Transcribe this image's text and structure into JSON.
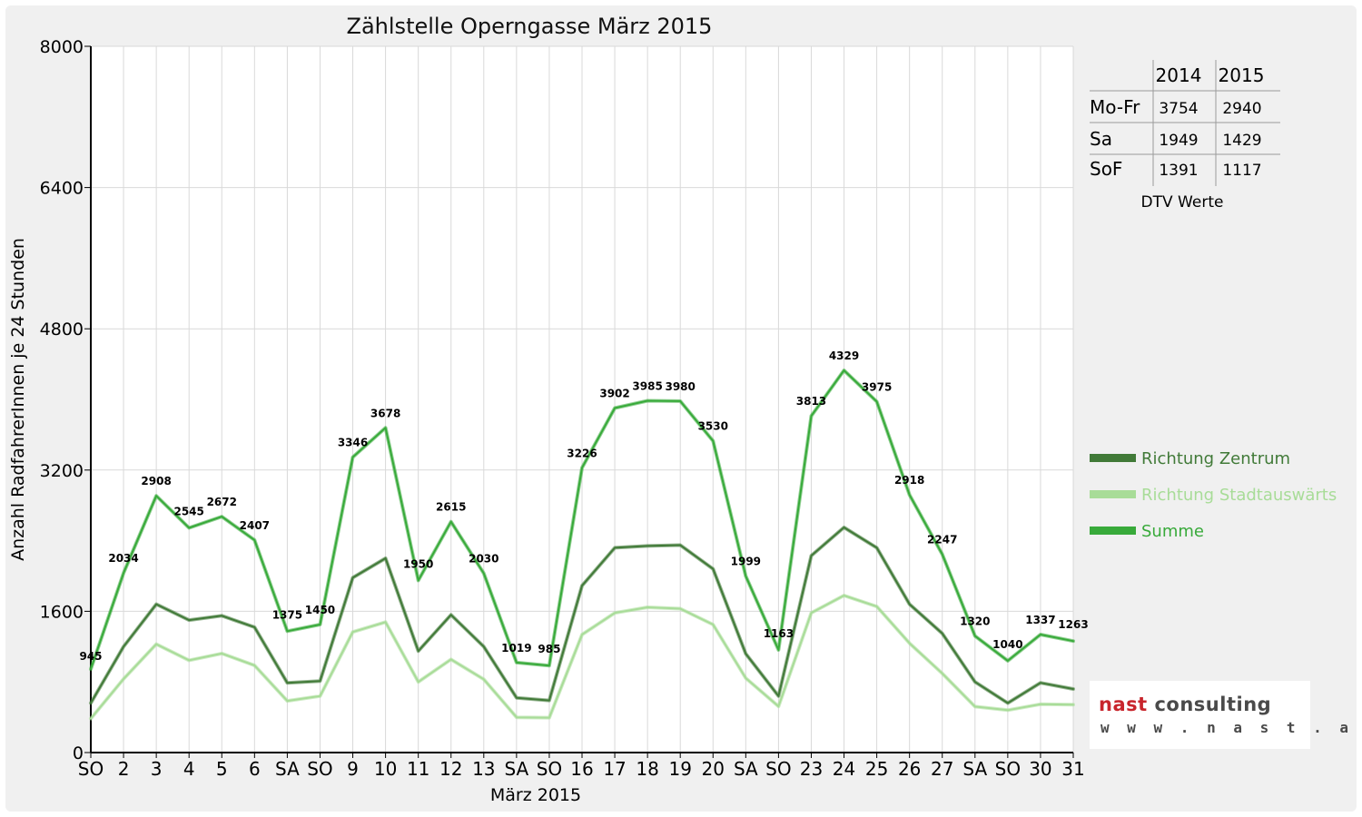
{
  "chart_data": {
    "type": "line",
    "title": "Zählstelle Operngasse März 2015",
    "xlabel": "März 2015",
    "ylabel": "Anzahl RadfahrerInnen je 24 Stunden",
    "ylim": [
      0,
      8000
    ],
    "yticks": [
      "0",
      "1600",
      "3200",
      "4800",
      "6400",
      "8000"
    ],
    "categories": [
      "SO",
      "2",
      "3",
      "4",
      "5",
      "6",
      "SA",
      "SO",
      "9",
      "10",
      "11",
      "12",
      "13",
      "SA",
      "SO",
      "16",
      "17",
      "18",
      "19",
      "20",
      "SA",
      "SO",
      "23",
      "24",
      "25",
      "26",
      "27",
      "SA",
      "SO",
      "30",
      "31"
    ],
    "weekend_color": "#e00000",
    "grid": true,
    "legend_position": "right",
    "series": [
      {
        "name": "Richtung Zentrum",
        "color": "#417a38",
        "values": [
          560,
          1200,
          1680,
          1500,
          1550,
          1420,
          790,
          810,
          1980,
          2200,
          1150,
          1560,
          1200,
          620,
          590,
          1890,
          2320,
          2340,
          2350,
          2080,
          1120,
          640,
          2230,
          2550,
          2320,
          1680,
          1350,
          800,
          560,
          790,
          720
        ]
      },
      {
        "name": "Richtung Stadtauswärts",
        "color": "#a8dc98",
        "values": [
          385,
          834,
          1228,
          1045,
          1122,
          987,
          585,
          640,
          1366,
          1478,
          800,
          1055,
          830,
          399,
          395,
          1336,
          1582,
          1645,
          1630,
          1450,
          843,
          523,
          1583,
          1779,
          1655,
          1238,
          897,
          520,
          480,
          547,
          543
        ]
      },
      {
        "name": "Summe",
        "color": "#38aa3a",
        "values": [
          945,
          2034,
          2908,
          2545,
          2672,
          2407,
          1375,
          1450,
          3346,
          3678,
          1950,
          2615,
          2030,
          1019,
          985,
          3226,
          3902,
          3985,
          3980,
          3530,
          1999,
          1163,
          3813,
          4329,
          3975,
          2918,
          2247,
          1320,
          1040,
          1337,
          1263
        ]
      }
    ],
    "data_labels": [
      "945",
      "2034",
      "2908",
      "2545",
      "2672",
      "2407",
      "1375",
      "1450",
      "3346",
      "3678",
      "1950",
      "2615",
      "2030",
      "1019",
      "985",
      "3226",
      "3902",
      "3985",
      "3980",
      "3530",
      "1999",
      "1163",
      "3813",
      "4329",
      "3975",
      "2918",
      "2247",
      "1320",
      "1040",
      "1337",
      "1263"
    ]
  },
  "dtv_table": {
    "headers": [
      "",
      "2014",
      "2015"
    ],
    "rows": [
      {
        "label": "Mo-Fr",
        "v2014": "3754",
        "v2015": "2940"
      },
      {
        "label": "Sa",
        "v2014": "1949",
        "v2015": "1429"
      },
      {
        "label": "SoF",
        "v2014": "1391",
        "v2015": "1117"
      }
    ],
    "caption": "DTV Werte"
  },
  "logo": {
    "brand_first": "nast",
    "brand_second": "consulting",
    "url": "w w w . n a s t . a t"
  }
}
